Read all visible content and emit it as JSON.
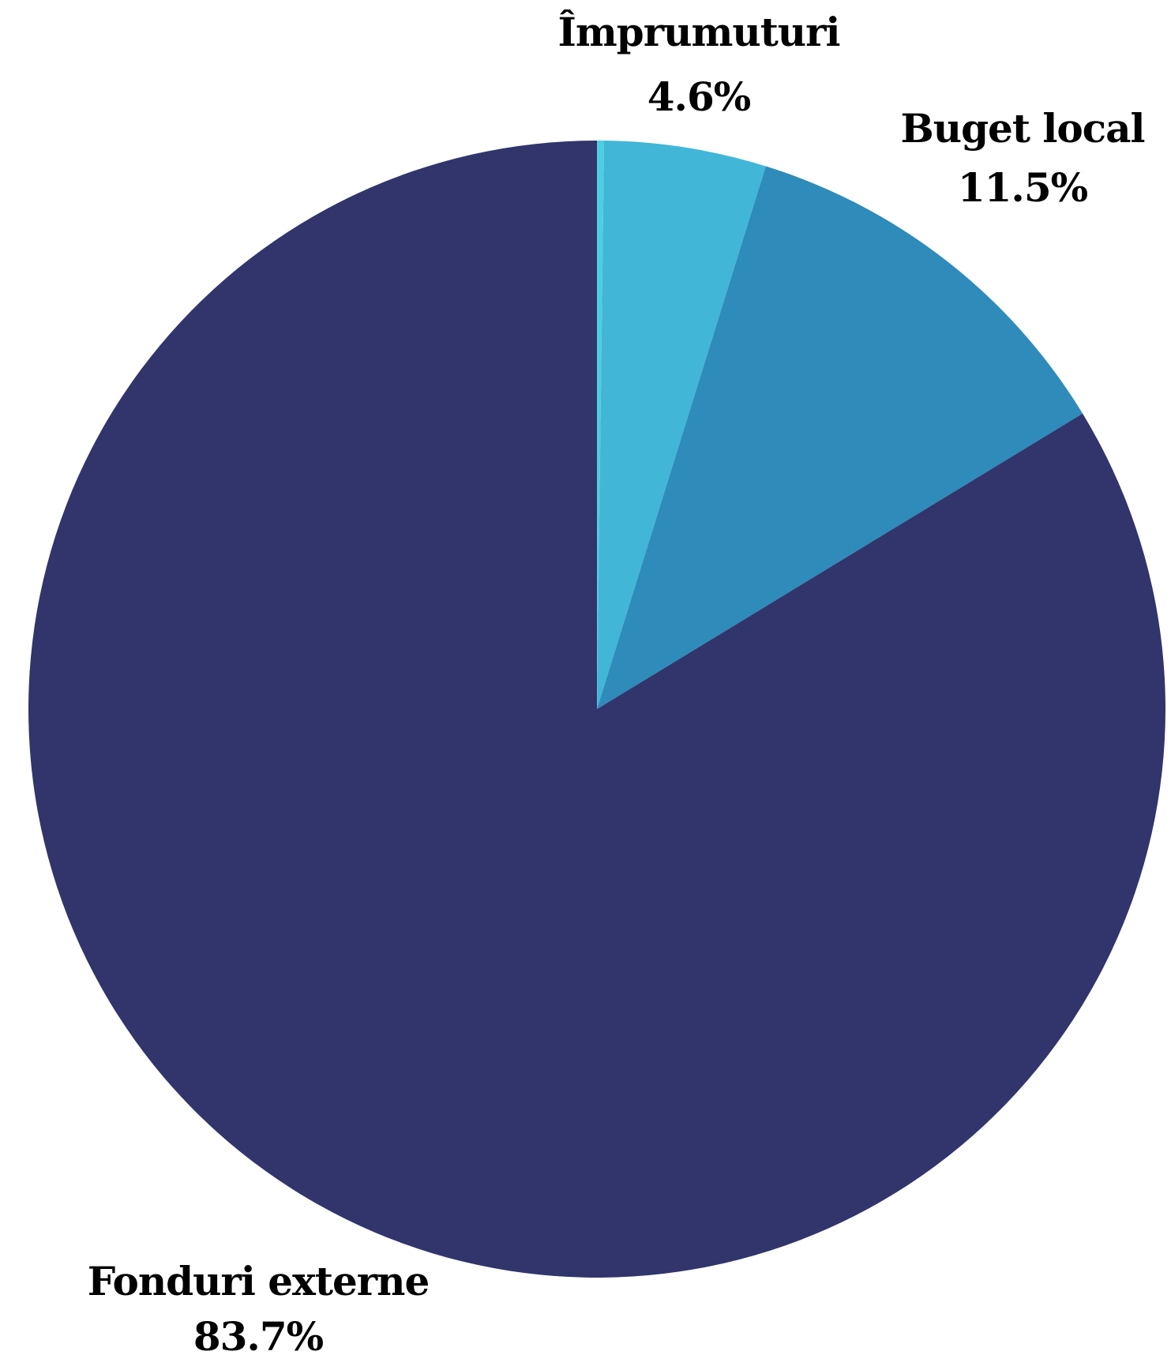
{
  "chart_data": {
    "type": "pie",
    "start_angle_deg": 0,
    "direction": "clockwise",
    "slices": [
      {
        "label": "",
        "value": 0.2,
        "value_label": "",
        "color": "#4ccfe0"
      },
      {
        "label": "Împrumuturi",
        "value": 4.6,
        "value_label": "4.6%",
        "color": "#41b6d6"
      },
      {
        "label": "Buget local",
        "value": 11.5,
        "value_label": "11.5%",
        "color": "#2e8bba"
      },
      {
        "label": "Fonduri externe",
        "value": 83.7,
        "value_label": "83.7%",
        "color": "#31356c"
      }
    ]
  }
}
